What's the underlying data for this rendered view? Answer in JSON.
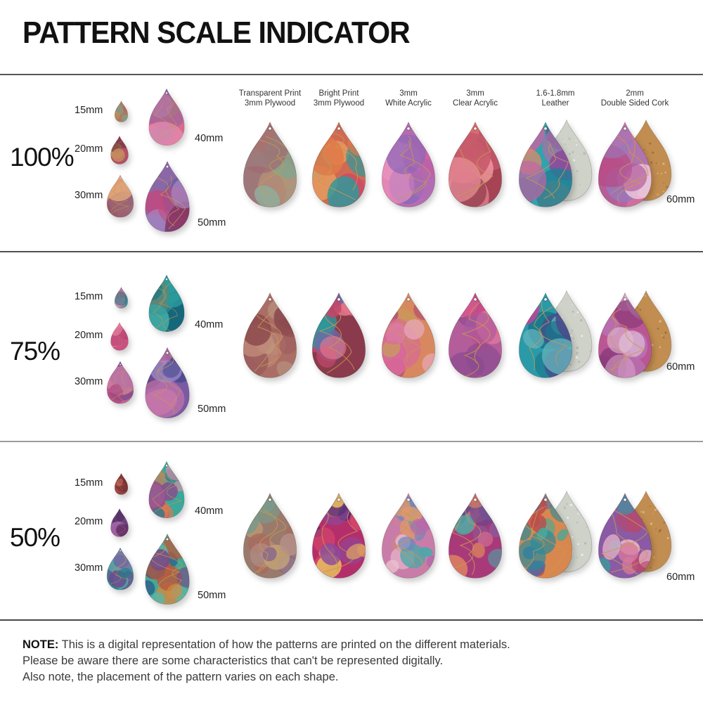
{
  "title": "PATTERN SCALE INDICATOR",
  "columns": [
    {
      "line1": "Transparent Print",
      "line2": "3mm Plywood"
    },
    {
      "line1": "Bright Print",
      "line2": "3mm Plywood"
    },
    {
      "line1": "3mm",
      "line2": "White Acrylic"
    },
    {
      "line1": "3mm",
      "line2": "Clear Acrylic"
    },
    {
      "line1": "1.6-1.8mm",
      "line2": "Leather"
    },
    {
      "line1": "2mm",
      "line2": "Double Sided Cork"
    }
  ],
  "accent_colors": {
    "gold_vein": "#c9984e",
    "suede_backing": "#ced2c9",
    "cork_backing": "#c28d50"
  },
  "rows": [
    {
      "scale_label": "100%",
      "pattern_scale": 1.0,
      "materials_size_label": "60mm",
      "sizes": [
        {
          "label": "15mm",
          "mm": 15,
          "colors": [
            "#a97a63",
            "#7fa08e",
            "#b8625f",
            "#c4924f"
          ]
        },
        {
          "label": "20mm",
          "mm": 20,
          "colors": [
            "#8a4452",
            "#c2566f",
            "#caa05a",
            "#6e3340"
          ]
        },
        {
          "label": "30mm",
          "mm": 30,
          "colors": [
            "#c4604a",
            "#d98a64",
            "#8a5878",
            "#e0a77c"
          ]
        },
        {
          "label": "40mm",
          "mm": 40,
          "colors": [
            "#d96a8d",
            "#8a62a0",
            "#cd8a57",
            "#e487ae",
            "#7a89b8"
          ]
        },
        {
          "label": "50mm",
          "mm": 50,
          "colors": [
            "#8a68a8",
            "#655a9e",
            "#c24a7e",
            "#7c2a56",
            "#a98bc4"
          ]
        }
      ],
      "materials": [
        {
          "name": "transparent-plywood",
          "mm": 60,
          "colors": [
            "#ad8a72",
            "#7fa78f",
            "#a06a72",
            "#b59079",
            "#8fae9c"
          ],
          "backing": null
        },
        {
          "name": "bright-plywood",
          "mm": 60,
          "colors": [
            "#cf6a52",
            "#2f9a9b",
            "#e07a49",
            "#cc4a68",
            "#e8a05f"
          ],
          "backing": null
        },
        {
          "name": "white-acrylic",
          "mm": 60,
          "colors": [
            "#d874ab",
            "#b06cb4",
            "#8f68b8",
            "#ea92bd",
            "#c45a9f"
          ],
          "backing": null
        },
        {
          "name": "clear-acrylic",
          "mm": 60,
          "colors": [
            "#a64456",
            "#c75a6c",
            "#ef949f",
            "#8a3347",
            "#e4766f"
          ],
          "backing": null
        },
        {
          "name": "leather",
          "mm": 60,
          "colors": [
            "#2fa3ae",
            "#1f7f95",
            "#c564a4",
            "#e08a68",
            "#8a4a9c"
          ],
          "backing": "suede"
        },
        {
          "name": "cork",
          "mm": 60,
          "colors": [
            "#cf6f9d",
            "#b45e9d",
            "#9878bb",
            "#e9c3d8",
            "#b84a86"
          ],
          "backing": "cork"
        }
      ]
    },
    {
      "scale_label": "75%",
      "pattern_scale": 0.75,
      "materials_size_label": "60mm",
      "sizes": [
        {
          "label": "15mm",
          "mm": 15,
          "colors": [
            "#4a8a9c",
            "#c8789c",
            "#2f6e80",
            "#d8a0b4"
          ]
        },
        {
          "label": "20mm",
          "mm": 20,
          "colors": [
            "#d8608c",
            "#c04878",
            "#e88aa8",
            "#a83a66"
          ]
        },
        {
          "label": "30mm",
          "mm": 30,
          "colors": [
            "#c75f93",
            "#a8487c",
            "#7a4a8e",
            "#e08cb0"
          ]
        },
        {
          "label": "40mm",
          "mm": 40,
          "colors": [
            "#15677b",
            "#2a9a9b",
            "#b5653d",
            "#0e4a5c",
            "#45b3ab"
          ]
        },
        {
          "label": "50mm",
          "mm": 50,
          "colors": [
            "#7a5aa4",
            "#4a4a8e",
            "#c878aa",
            "#9a88c8",
            "#5e3d7e"
          ]
        }
      ],
      "materials": [
        {
          "name": "transparent-plywood",
          "mm": 60,
          "colors": [
            "#ab6e66",
            "#9a5a5c",
            "#c08878",
            "#8c4a4e",
            "#b89a86"
          ],
          "backing": null
        },
        {
          "name": "bright-plywood",
          "mm": 60,
          "colors": [
            "#8a3a4c",
            "#2a9a9b",
            "#e8788e",
            "#6a6aac",
            "#c2486a"
          ],
          "backing": null
        },
        {
          "name": "white-acrylic",
          "mm": 60,
          "colors": [
            "#d8885e",
            "#c89a5c",
            "#d8689c",
            "#e8a8ba",
            "#b4506e"
          ],
          "backing": null
        },
        {
          "name": "clear-acrylic",
          "mm": 60,
          "colors": [
            "#b45d9b",
            "#8a4a8e",
            "#e8809e",
            "#a85aa0",
            "#d04a86"
          ],
          "backing": null
        },
        {
          "name": "leather",
          "mm": 60,
          "colors": [
            "#2a9aa8",
            "#17768a",
            "#b84898",
            "#4a4a8c",
            "#6db8c0"
          ],
          "backing": "suede"
        },
        {
          "name": "cork",
          "mm": 60,
          "colors": [
            "#bb5694",
            "#8a3a7a",
            "#b878ba",
            "#d8a8ca",
            "#e0c2d8"
          ],
          "backing": "cork"
        }
      ]
    },
    {
      "scale_label": "50%",
      "pattern_scale": 0.5,
      "materials_size_label": "60mm",
      "sizes": [
        {
          "label": "15mm",
          "mm": 15,
          "colors": [
            "#93413e",
            "#a84a4c",
            "#6a2a2e",
            "#c06858"
          ]
        },
        {
          "label": "20mm",
          "mm": 20,
          "colors": [
            "#6e4480",
            "#4a2a5e",
            "#a868aa",
            "#8e3a74"
          ]
        },
        {
          "label": "30mm",
          "mm": 30,
          "colors": [
            "#3a9a9b",
            "#6a4a8e",
            "#2a7a8a",
            "#8a68aa",
            "#54b4a6"
          ]
        },
        {
          "label": "40mm",
          "mm": 40,
          "colors": [
            "#3aa89a",
            "#e0784e",
            "#8a4a8e",
            "#e890a9",
            "#2a7890"
          ]
        },
        {
          "label": "50mm",
          "mm": 50,
          "colors": [
            "#43a896",
            "#d8883f",
            "#2a5a8c",
            "#b85a3e",
            "#58b8a8",
            "#7a4a86"
          ]
        }
      ],
      "materials": [
        {
          "name": "transparent-plywood",
          "mm": 60,
          "colors": [
            "#9a7a6c",
            "#b5908a",
            "#7a9a8a",
            "#c8a878",
            "#a86a5c",
            "#8a6a8a"
          ],
          "backing": null
        },
        {
          "name": "bright-plywood",
          "mm": 60,
          "colors": [
            "#b52e6c",
            "#e09a5c",
            "#4a2a68",
            "#d8486c",
            "#8a4a9c",
            "#e8c05f"
          ],
          "backing": null
        },
        {
          "name": "white-acrylic",
          "mm": 60,
          "colors": [
            "#c97ca8",
            "#6a88ba",
            "#e09a6a",
            "#4aa8a8",
            "#b868aa",
            "#ecc0d0"
          ],
          "backing": null
        },
        {
          "name": "clear-acrylic",
          "mm": 60,
          "colors": [
            "#a83a7a",
            "#e0885c",
            "#48a8a8",
            "#8a5a9c",
            "#d06a8e",
            "#5a4a8c"
          ],
          "backing": null
        },
        {
          "name": "leather",
          "mm": 60,
          "colors": [
            "#d8884e",
            "#2a8a9c",
            "#b84a4e",
            "#4a6aaa",
            "#48a89a"
          ],
          "backing": "suede"
        },
        {
          "name": "cork",
          "mm": 60,
          "colors": [
            "#8a5aa4",
            "#d8789c",
            "#3a9a9b",
            "#b8486c",
            "#e8b8cc"
          ],
          "backing": "cork"
        }
      ]
    }
  ],
  "note": {
    "label": "NOTE:",
    "lines": [
      "This is a digital representation of how the patterns are printed on the different materials.",
      "Please be aware there are some characteristics that can't be represented digitally.",
      "Also note, the placement of the pattern varies on each shape."
    ]
  }
}
